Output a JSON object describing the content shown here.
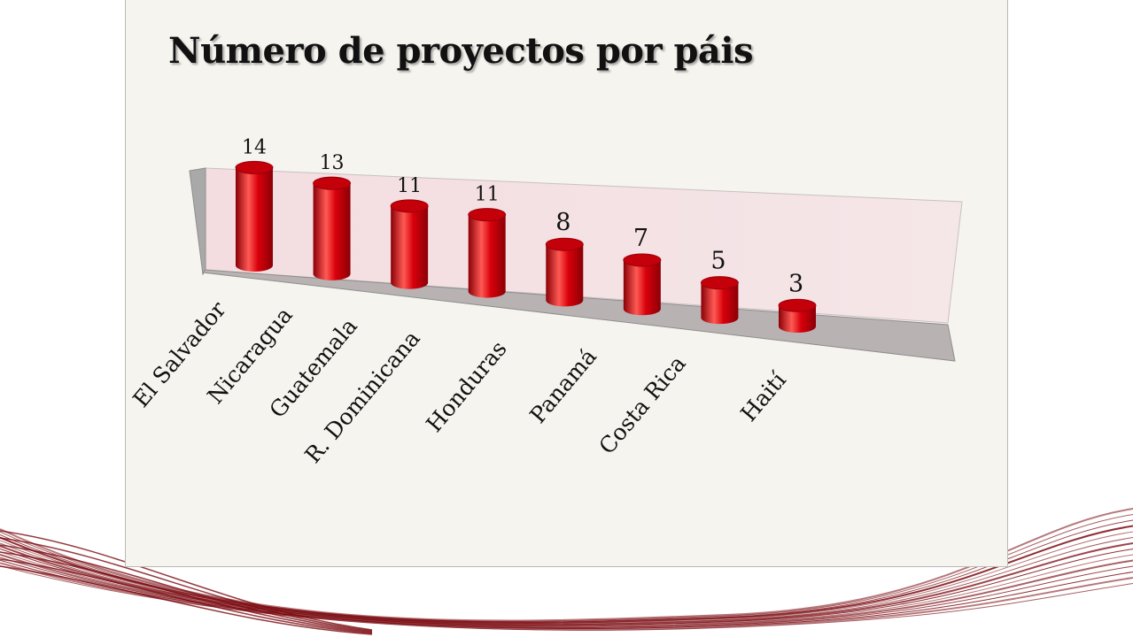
{
  "slide": {
    "title": "Número de proyectos por páis"
  },
  "colors": {
    "bar": "#d8000b",
    "bar_dark": "#8a0006",
    "bar_light": "#ff5a55",
    "back_wall": "#f5e6e8",
    "side_wall": "#a9a9a9",
    "floor": "#b9b2b3",
    "decor_lines": "#7a0a10",
    "panel": "#f5f4ef"
  },
  "chart_data": {
    "type": "bar",
    "style": "3d-cylinder",
    "title": "Número de proyectos por páis",
    "xlabel": "",
    "ylabel": "",
    "ylim": [
      0,
      15
    ],
    "grid": false,
    "legend": "none",
    "categories": [
      "El Salvador",
      "Nicaragua",
      "Guatemala",
      "R. Dominicana",
      "Honduras",
      "Panamá",
      "Costa Rica",
      "Haití"
    ],
    "values": [
      14,
      13,
      11,
      11,
      8,
      7,
      5,
      3
    ]
  }
}
